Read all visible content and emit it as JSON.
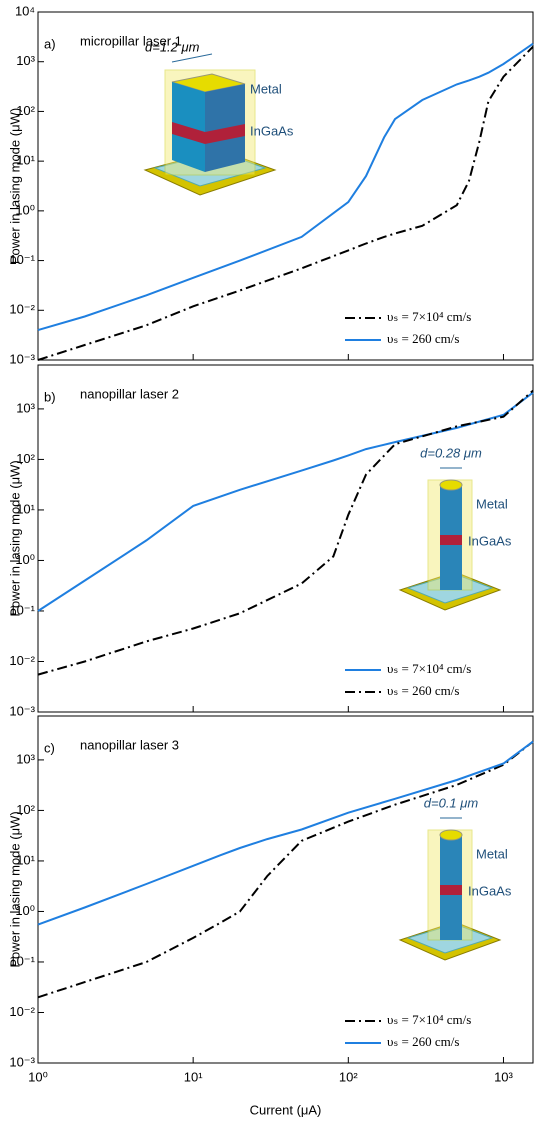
{
  "chart_data": [
    {
      "type": "line",
      "panel_label": "a)",
      "title": "micropillar laser 1",
      "ylabel": "Power in lasing mode (μW)",
      "xscale": "log",
      "yscale": "log",
      "xlim": [
        1,
        1550
      ],
      "ylim": [
        0.001,
        10000
      ],
      "xticks": [
        1,
        10,
        100,
        1000
      ],
      "yticks": [
        {
          "value": 0.001,
          "label": "10⁻³"
        },
        {
          "value": 0.01,
          "label": "10⁻²"
        },
        {
          "value": 0.1,
          "label": "10⁻¹"
        },
        {
          "value": 1,
          "label": "10⁰"
        },
        {
          "value": 10,
          "label": "10¹"
        },
        {
          "value": 100,
          "label": "10²"
        },
        {
          "value": 1000,
          "label": "10³"
        },
        {
          "value": 10000,
          "label": "10⁴"
        }
      ],
      "legend": "lower right",
      "annotations": [
        "d=1.2 μm",
        "Metal",
        "InGaAs"
      ],
      "x": [
        1,
        2,
        5,
        10,
        20,
        50,
        100,
        130,
        170,
        200,
        300,
        500,
        600,
        700,
        800,
        1000,
        1550
      ],
      "series": [
        {
          "name": "υₛ = 7×10⁴ cm/s",
          "color": "#000000",
          "dash": "dashdot",
          "values": [
            0.001,
            0.002,
            0.005,
            0.012,
            0.025,
            0.07,
            0.16,
            0.22,
            0.3,
            0.35,
            0.5,
            1.3,
            4,
            25,
            160,
            500,
            2000
          ]
        },
        {
          "name": "υₛ = 260 cm/s",
          "color": "#1f7fe0",
          "dash": "solid",
          "values": [
            0.004,
            0.0075,
            0.02,
            0.045,
            0.1,
            0.3,
            1.5,
            5,
            30,
            70,
            170,
            350,
            420,
            500,
            600,
            900,
            2300
          ]
        }
      ]
    },
    {
      "type": "line",
      "panel_label": "b)",
      "title": "nanopillar laser 2",
      "ylabel": "Power in lasing mode (μW)",
      "xscale": "log",
      "yscale": "log",
      "xlim": [
        1,
        1550
      ],
      "ylim": [
        0.001,
        7400
      ],
      "xticks": [
        1,
        10,
        100,
        1000
      ],
      "yticks": [
        {
          "value": 0.001,
          "label": "10⁻³"
        },
        {
          "value": 0.01,
          "label": "10⁻²"
        },
        {
          "value": 0.1,
          "label": "10⁻¹"
        },
        {
          "value": 1,
          "label": "10⁰"
        },
        {
          "value": 10,
          "label": "10¹"
        },
        {
          "value": 100,
          "label": "10²"
        },
        {
          "value": 1000,
          "label": "10³"
        }
      ],
      "legend": "lower right",
      "annotations": [
        "d=0.28 μm",
        "Metal",
        "InGaAs"
      ],
      "x": [
        1,
        2,
        5,
        10,
        20,
        50,
        80,
        100,
        130,
        200,
        500,
        1000,
        1550
      ],
      "series": [
        {
          "name": "υₛ = 7×10⁴ cm/s",
          "color": "#1f7fe0",
          "dash": "solid",
          "values": [
            0.1,
            0.4,
            2.5,
            12,
            25,
            60,
            95,
            120,
            160,
            220,
            420,
            760,
            2100
          ]
        },
        {
          "name": "υₛ = 260 cm/s",
          "color": "#000000",
          "dash": "dashdot",
          "values": [
            0.0055,
            0.01,
            0.025,
            0.045,
            0.09,
            0.35,
            1.2,
            8,
            50,
            200,
            450,
            700,
            2300
          ]
        }
      ]
    },
    {
      "type": "line",
      "panel_label": "c)",
      "title": "nanopillar laser 3",
      "ylabel": "Power in lasing mode (μW)",
      "xlabel": "Current (μA)",
      "xscale": "log",
      "yscale": "log",
      "xlim": [
        1,
        1550
      ],
      "ylim": [
        0.001,
        7400
      ],
      "xticks": [
        {
          "value": 1,
          "label": "10⁰"
        },
        {
          "value": 10,
          "label": "10¹"
        },
        {
          "value": 100,
          "label": "10²"
        },
        {
          "value": 1000,
          "label": "10³"
        }
      ],
      "yticks": [
        {
          "value": 0.001,
          "label": "10⁻³"
        },
        {
          "value": 0.01,
          "label": "10⁻²"
        },
        {
          "value": 0.1,
          "label": "10⁻¹"
        },
        {
          "value": 1,
          "label": "10⁰"
        },
        {
          "value": 10,
          "label": "10¹"
        },
        {
          "value": 100,
          "label": "10²"
        },
        {
          "value": 1000,
          "label": "10³"
        }
      ],
      "legend": "lower right",
      "annotations": [
        "d=0.1 μm",
        "Metal",
        "InGaAs"
      ],
      "x": [
        1,
        2,
        5,
        10,
        15,
        20,
        30,
        50,
        100,
        200,
        500,
        1000,
        1550
      ],
      "series": [
        {
          "name": "υₛ = 7×10⁴ cm/s",
          "color": "#000000",
          "dash": "dashdot",
          "values": [
            0.02,
            0.04,
            0.1,
            0.3,
            0.6,
            1,
            5,
            25,
            60,
            130,
            320,
            800,
            2300
          ]
        },
        {
          "name": "υₛ = 260 cm/s",
          "color": "#1f7fe0",
          "dash": "solid",
          "values": [
            0.55,
            1.2,
            3.5,
            8,
            13,
            18,
            27,
            42,
            90,
            170,
            400,
            850,
            2300
          ]
        }
      ]
    }
  ]
}
